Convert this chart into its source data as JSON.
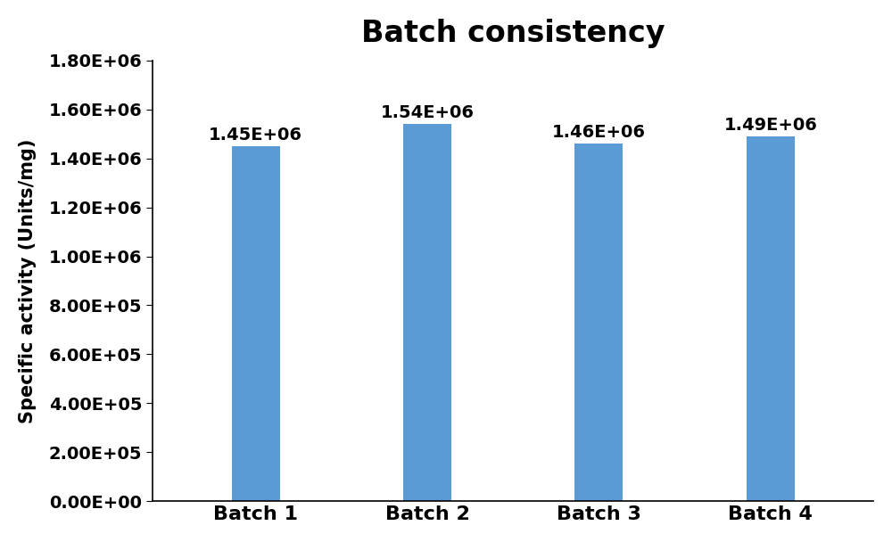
{
  "title": "Batch consistency",
  "categories": [
    "Batch 1",
    "Batch 2",
    "Batch 3",
    "Batch 4"
  ],
  "values": [
    1450000,
    1540000,
    1460000,
    1490000
  ],
  "bar_labels": [
    "1.45E+06",
    "1.54E+06",
    "1.46E+06",
    "1.49E+06"
  ],
  "bar_color": "#5B9BD5",
  "ylabel": "Specific activity (Units/mg)",
  "ylim": [
    0,
    1800000
  ],
  "yticks": [
    0,
    200000,
    400000,
    600000,
    800000,
    1000000,
    1200000,
    1400000,
    1600000,
    1800000
  ],
  "ytick_labels": [
    "0.00E+00",
    "2.00E+05",
    "4.00E+05",
    "6.00E+05",
    "8.00E+05",
    "1.00E+06",
    "1.20E+06",
    "1.40E+06",
    "1.60E+06",
    "1.80E+06"
  ],
  "title_fontsize": 24,
  "axis_label_fontsize": 15,
  "tick_fontsize": 14,
  "bar_label_fontsize": 14,
  "xlabel_fontsize": 16,
  "background_color": "#ffffff",
  "bar_width": 0.28,
  "figsize": [
    10.0,
    6.08
  ]
}
